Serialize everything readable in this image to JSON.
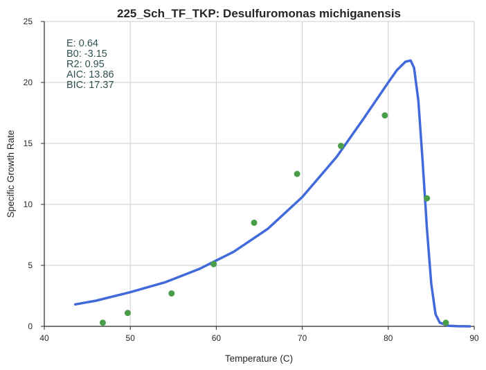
{
  "chart_data": {
    "type": "scatter",
    "title": "225_Sch_TF_TKP: Desulfuromonas michiganensis",
    "xlabel": "Temperature (C)",
    "ylabel": "Specific Growth Rate",
    "xlim": [
      40,
      90
    ],
    "ylim": [
      0,
      25
    ],
    "xticks": [
      40,
      50,
      60,
      70,
      80,
      90
    ],
    "yticks": [
      0,
      5,
      10,
      15,
      20,
      25
    ],
    "xtick_labels": [
      "40",
      "50",
      "60",
      "70",
      "80",
      "90"
    ],
    "ytick_labels": [
      "0",
      "5",
      "10",
      "15",
      "20",
      "25"
    ],
    "grid": true,
    "annotations": [
      "E:  0.64",
      "B0:  -3.15",
      "R2:  0.95",
      "AIC: 13.86",
      "BIC: 17.37"
    ],
    "points": {
      "color": "#4a9e4a",
      "x": [
        46.8,
        49.7,
        54.8,
        59.7,
        64.4,
        69.4,
        74.5,
        79.6,
        84.5,
        86.7
      ],
      "y": [
        0.3,
        1.1,
        2.7,
        5.1,
        8.5,
        12.5,
        14.8,
        17.3,
        10.5,
        0.3
      ]
    },
    "fit": {
      "color": "#4169d9",
      "x": [
        43.6,
        46,
        50,
        54,
        58,
        62,
        66,
        70,
        74,
        77,
        80,
        81,
        82,
        82.6,
        83,
        83.5,
        84,
        84.5,
        85,
        85.5,
        86,
        87,
        88,
        89.5
      ],
      "y": [
        1.8,
        2.1,
        2.8,
        3.6,
        4.7,
        6.1,
        8.0,
        10.6,
        13.9,
        16.9,
        20.0,
        21.0,
        21.7,
        21.8,
        21.2,
        18.5,
        13.5,
        8.0,
        3.5,
        1.0,
        0.3,
        0.05,
        0.01,
        0.0
      ]
    }
  }
}
